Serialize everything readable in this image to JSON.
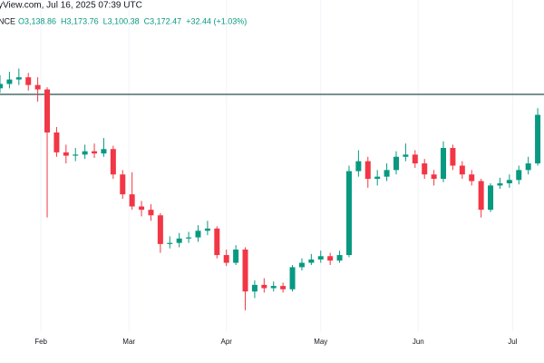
{
  "header": {
    "source": "yView.com, Jul 16, 2025 07:39 UTC",
    "symbol": "NCE",
    "ohlc": [
      "O3,138.86",
      "H3,173.76",
      "L3,100.38",
      "C3,172.47",
      "+32.44 (+1.03%)"
    ]
  },
  "chart_data": {
    "type": "candlestick",
    "x": [
      0,
      3,
      6,
      9,
      12,
      15,
      18,
      21,
      24,
      27,
      30,
      33,
      36,
      39,
      42,
      45,
      48,
      51,
      54,
      57,
      60,
      63,
      66,
      69,
      72,
      75,
      78,
      81,
      84,
      87,
      90,
      93,
      96,
      99,
      102,
      105,
      108,
      111,
      114,
      117,
      120,
      123,
      126,
      129,
      132,
      135,
      138,
      141,
      144,
      147,
      150,
      153,
      156,
      159,
      162,
      165,
      168,
      171
    ],
    "open": [
      3300,
      3340,
      3380,
      3400,
      3330,
      3290,
      2900,
      2720,
      2690,
      2700,
      2730,
      2710,
      2750,
      2520,
      2340,
      2230,
      2200,
      2150,
      1890,
      1900,
      1940,
      1950,
      2010,
      2030,
      1790,
      1720,
      1840,
      1460,
      1520,
      1490,
      1510,
      1480,
      1680,
      1720,
      1750,
      1780,
      1740,
      1790,
      2550,
      2640,
      2480,
      2500,
      2560,
      2680,
      2700,
      2620,
      2520,
      2480,
      2760,
      2600,
      2520,
      2460,
      2200,
      2420,
      2440,
      2470,
      2560,
      2620
    ],
    "high": [
      3420,
      3450,
      3480,
      3440,
      3400,
      3310,
      2950,
      2790,
      2760,
      2790,
      2800,
      2850,
      2780,
      2560,
      2540,
      2280,
      2250,
      2170,
      1960,
      1990,
      2000,
      2060,
      2100,
      2050,
      1840,
      1880,
      1860,
      1560,
      1580,
      1550,
      1540,
      1700,
      1760,
      1800,
      1830,
      1810,
      1830,
      2600,
      2740,
      2680,
      2560,
      2620,
      2730,
      2800,
      2740,
      2660,
      2560,
      2820,
      2790,
      2640,
      2560,
      2480,
      2440,
      2490,
      2520,
      2600,
      2680,
      3120
    ],
    "low": [
      3260,
      3300,
      3330,
      3280,
      3180,
      2130,
      2680,
      2620,
      2640,
      2660,
      2670,
      2680,
      2480,
      2300,
      2200,
      2140,
      2100,
      1810,
      1850,
      1860,
      1900,
      1910,
      1970,
      1760,
      1690,
      1700,
      1290,
      1400,
      1450,
      1460,
      1450,
      1460,
      1650,
      1700,
      1720,
      1700,
      1720,
      1770,
      2500,
      2400,
      2420,
      2460,
      2520,
      2640,
      2580,
      2480,
      2420,
      2450,
      2560,
      2480,
      2420,
      2130,
      2180,
      2390,
      2400,
      2430,
      2520,
      2600
    ],
    "close": [
      3340,
      3380,
      3400,
      3330,
      3290,
      2900,
      2720,
      2690,
      2700,
      2730,
      2710,
      2750,
      2520,
      2340,
      2230,
      2200,
      2150,
      1890,
      1900,
      1940,
      1950,
      2010,
      2030,
      1790,
      1720,
      1840,
      1460,
      1520,
      1490,
      1510,
      1480,
      1680,
      1720,
      1750,
      1780,
      1740,
      1790,
      2550,
      2640,
      2480,
      2500,
      2560,
      2680,
      2700,
      2620,
      2520,
      2480,
      2760,
      2600,
      2520,
      2460,
      2200,
      2420,
      2440,
      2470,
      2560,
      2620,
      3060
    ],
    "xlim": [
      0,
      173
    ],
    "ylim": [
      1100,
      4100
    ],
    "xticks": [
      {
        "value": 13,
        "label": "Feb"
      },
      {
        "value": 41,
        "label": "Mar"
      },
      {
        "value": 72,
        "label": "Apr"
      },
      {
        "value": 102,
        "label": "May"
      },
      {
        "value": 133,
        "label": "Jun"
      },
      {
        "value": 163,
        "label": "Jul"
      }
    ],
    "hline": 3245,
    "up_color": "#089981",
    "down_color": "#f23645",
    "grid": true
  }
}
